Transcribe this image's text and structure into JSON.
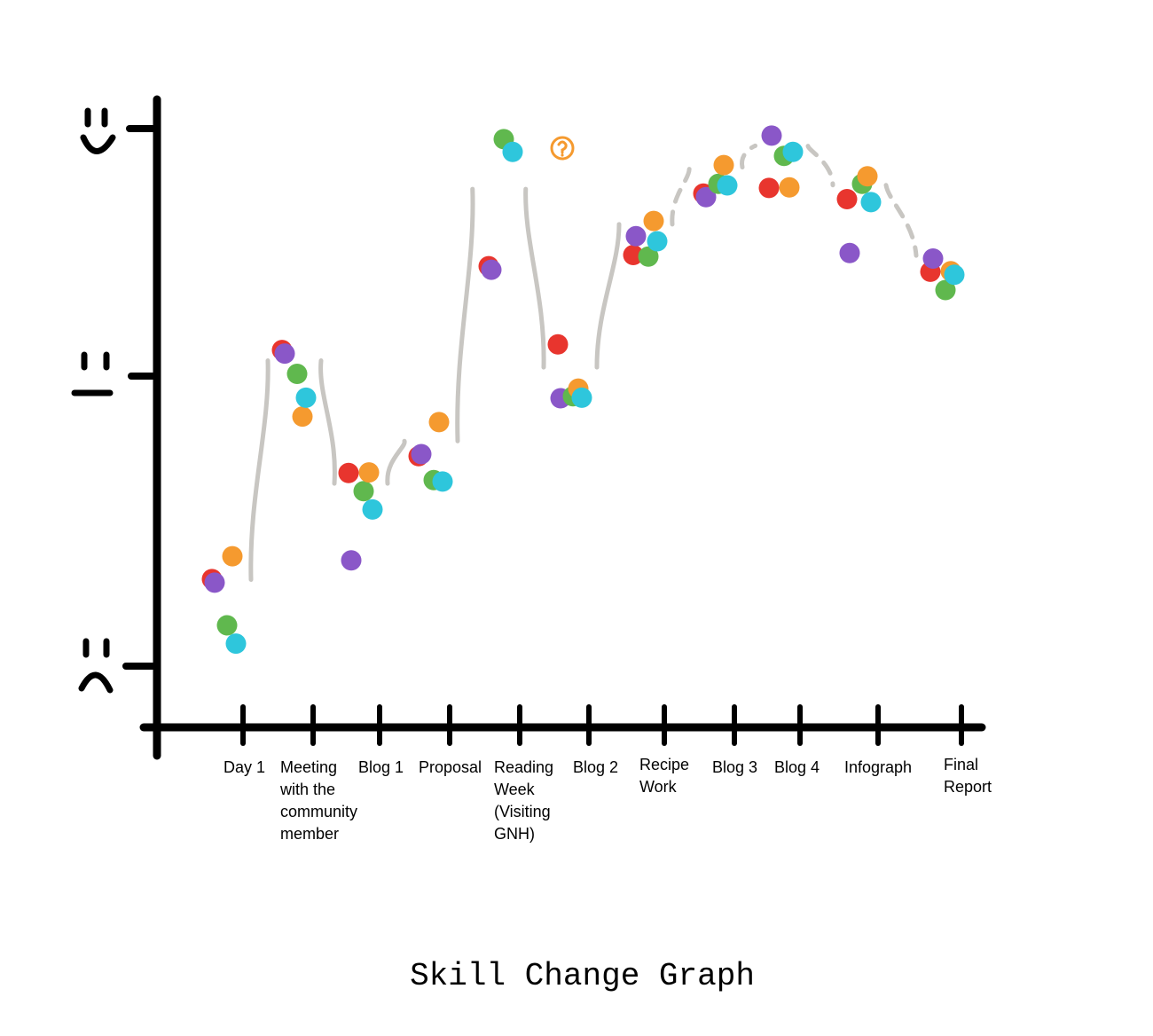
{
  "chart_data": {
    "type": "scatter",
    "title": "Skill Change Graph",
    "xlabel": "",
    "ylabel": "",
    "y_axis_markers": [
      "happy-face-icon",
      "neutral-face-icon",
      "sad-face-icon"
    ],
    "ylim": [
      0,
      10
    ],
    "categories": [
      "Day 1",
      "Meeting with the community member",
      "Blog 1",
      "Proposal",
      "Reading Week (Visiting GNH)",
      "Blog 2",
      "Recipe Work",
      "Blog 3",
      "Blog 4",
      "Infograph",
      "Final Report"
    ],
    "tick_lines": [
      [
        "Day 1"
      ],
      [
        "Meeting",
        "with the",
        "community",
        "member"
      ],
      [
        "Blog 1"
      ],
      [
        "Proposal"
      ],
      [
        "Reading",
        "Week",
        "(Visiting",
        "GNH)"
      ],
      [
        "Blog 2"
      ],
      [
        "Recipe",
        "Work"
      ],
      [
        "Blog 3"
      ],
      [
        "Blog 4"
      ],
      [
        "Infograph"
      ],
      [
        "Final",
        "Report"
      ]
    ],
    "series": [
      {
        "color": "#e8352e",
        "values": [
          1.7,
          5.8,
          3.6,
          3.9,
          7.3,
          5.9,
          7.5,
          8.6,
          8.7,
          8.5,
          7.2
        ]
      },
      {
        "color": "#8a57c8",
        "values": [
          1.7,
          5.8,
          2.1,
          4.0,
          7.3,
          5.0,
          7.9,
          8.6,
          9.7,
          7.6,
          7.5
        ]
      },
      {
        "color": "#60b84e",
        "values": [
          1.0,
          5.5,
          3.4,
          3.6,
          9.7,
          5.1,
          7.6,
          8.9,
          9.4,
          8.9,
          7.0
        ]
      },
      {
        "color": "#f59a2f",
        "values": [
          2.3,
          4.8,
          3.8,
          4.7,
          null,
          5.3,
          8.3,
          9.3,
          8.9,
          9.1,
          7.4
        ]
      },
      {
        "color": "#2ec6dc",
        "values": [
          0.8,
          5.2,
          3.2,
          3.7,
          9.6,
          5.2,
          8.0,
          9.0,
          9.6,
          8.7,
          7.4
        ]
      }
    ],
    "annotations": [
      {
        "category": "Reading Week (Visiting GNH)",
        "marker": "question-mark-icon",
        "color": "#f59a2f"
      }
    ],
    "connector_color": "#c8c6c2",
    "grid": false,
    "legend": "none"
  }
}
